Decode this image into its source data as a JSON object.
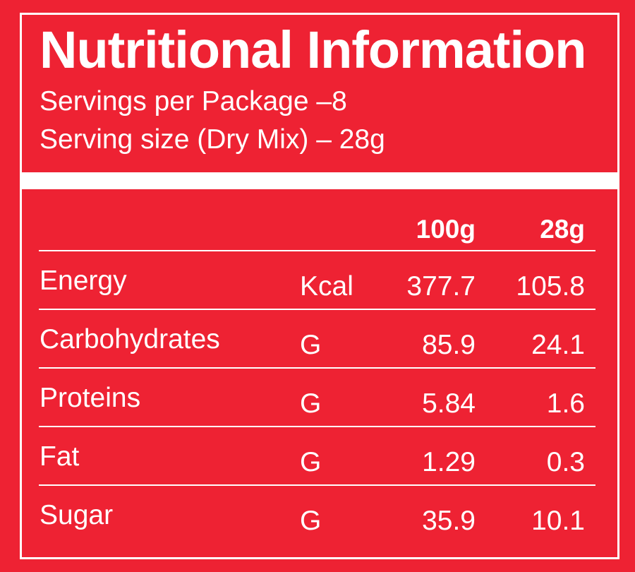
{
  "header": {
    "title": "Nutritional Information",
    "servings_per_package": "Servings per Package –8",
    "serving_size": "Serving size (Dry Mix) – 28g"
  },
  "table": {
    "columns": [
      "100g",
      "28g"
    ],
    "rows": [
      {
        "name": "Energy",
        "unit": "Kcal",
        "per_100g": "377.7",
        "per_28g": "105.8"
      },
      {
        "name": "Carbohydrates",
        "unit": "G",
        "per_100g": "85.9",
        "per_28g": "24.1"
      },
      {
        "name": "Proteins",
        "unit": "G",
        "per_100g": "5.84",
        "per_28g": "1.6"
      },
      {
        "name": "Fat",
        "unit": "G",
        "per_100g": "1.29",
        "per_28g": "0.3"
      },
      {
        "name": "Sugar",
        "unit": "G",
        "per_100g": "35.9",
        "per_28g": "10.1"
      }
    ]
  },
  "colors": {
    "background": "#ee2233",
    "foreground": "#ffffff"
  }
}
